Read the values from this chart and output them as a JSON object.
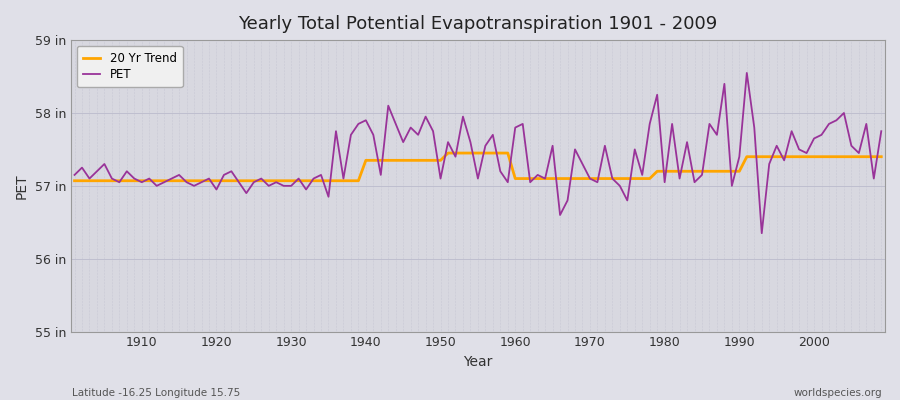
{
  "title": "Yearly Total Potential Evapotranspiration 1901 - 2009",
  "xlabel": "Year",
  "ylabel": "PET",
  "subtitle_left": "Latitude -16.25 Longitude 15.75",
  "subtitle_right": "worldspecies.org",
  "pet_color": "#993399",
  "trend_color": "#FFA500",
  "bg_color": "#E0E0E8",
  "plot_bg_color": "#D8D8E0",
  "ylim": [
    55.0,
    59.0
  ],
  "yticks": [
    55,
    56,
    57,
    58,
    59
  ],
  "ytick_labels": [
    "55 in",
    "56 in",
    "57 in",
    "58 in",
    "59 in"
  ],
  "xticks": [
    1910,
    1920,
    1930,
    1940,
    1950,
    1960,
    1970,
    1980,
    1990,
    2000
  ],
  "years": [
    1901,
    1902,
    1903,
    1904,
    1905,
    1906,
    1907,
    1908,
    1909,
    1910,
    1911,
    1912,
    1913,
    1914,
    1915,
    1916,
    1917,
    1918,
    1919,
    1920,
    1921,
    1922,
    1923,
    1924,
    1925,
    1926,
    1927,
    1928,
    1929,
    1930,
    1931,
    1932,
    1933,
    1934,
    1935,
    1936,
    1937,
    1938,
    1939,
    1940,
    1941,
    1942,
    1943,
    1944,
    1945,
    1946,
    1947,
    1948,
    1949,
    1950,
    1951,
    1952,
    1953,
    1954,
    1955,
    1956,
    1957,
    1958,
    1959,
    1960,
    1961,
    1962,
    1963,
    1964,
    1965,
    1966,
    1967,
    1968,
    1969,
    1970,
    1971,
    1972,
    1973,
    1974,
    1975,
    1976,
    1977,
    1978,
    1979,
    1980,
    1981,
    1982,
    1983,
    1984,
    1985,
    1986,
    1987,
    1988,
    1989,
    1990,
    1991,
    1992,
    1993,
    1994,
    1995,
    1996,
    1997,
    1998,
    1999,
    2000,
    2001,
    2002,
    2003,
    2004,
    2005,
    2006,
    2007,
    2008,
    2009
  ],
  "pet_values": [
    57.15,
    57.25,
    57.1,
    57.2,
    57.3,
    57.1,
    57.05,
    57.2,
    57.1,
    57.05,
    57.1,
    57.0,
    57.05,
    57.1,
    57.15,
    57.05,
    57.0,
    57.05,
    57.1,
    56.95,
    57.15,
    57.2,
    57.05,
    56.9,
    57.05,
    57.1,
    57.0,
    57.05,
    57.0,
    57.0,
    57.1,
    56.95,
    57.1,
    57.15,
    56.85,
    57.75,
    57.1,
    57.7,
    57.85,
    57.9,
    57.7,
    57.15,
    58.1,
    57.85,
    57.6,
    57.8,
    57.7,
    57.95,
    57.75,
    57.1,
    57.6,
    57.4,
    57.95,
    57.6,
    57.1,
    57.55,
    57.7,
    57.2,
    57.05,
    57.8,
    57.85,
    57.05,
    57.15,
    57.1,
    57.55,
    56.6,
    56.8,
    57.5,
    57.3,
    57.1,
    57.05,
    57.55,
    57.1,
    57.0,
    56.8,
    57.5,
    57.15,
    57.85,
    58.25,
    57.05,
    57.85,
    57.1,
    57.6,
    57.05,
    57.15,
    57.85,
    57.7,
    58.4,
    57.0,
    57.4,
    58.55,
    57.8,
    56.35,
    57.3,
    57.55,
    57.35,
    57.75,
    57.5,
    57.45,
    57.65,
    57.7,
    57.85,
    57.9,
    58.0,
    57.55,
    57.45,
    57.85,
    57.1,
    57.75
  ],
  "trend_values": [
    57.07,
    57.07,
    57.07,
    57.07,
    57.07,
    57.07,
    57.07,
    57.07,
    57.07,
    57.07,
    57.07,
    57.07,
    57.07,
    57.07,
    57.07,
    57.07,
    57.07,
    57.07,
    57.07,
    57.07,
    57.07,
    57.07,
    57.07,
    57.07,
    57.07,
    57.07,
    57.07,
    57.07,
    57.07,
    57.07,
    57.07,
    57.07,
    57.07,
    57.07,
    57.07,
    57.07,
    57.07,
    57.07,
    57.07,
    57.35,
    57.35,
    57.35,
    57.35,
    57.35,
    57.35,
    57.35,
    57.35,
    57.35,
    57.35,
    57.35,
    57.45,
    57.45,
    57.45,
    57.45,
    57.45,
    57.45,
    57.45,
    57.45,
    57.45,
    57.1,
    57.1,
    57.1,
    57.1,
    57.1,
    57.1,
    57.1,
    57.1,
    57.1,
    57.1,
    57.1,
    57.1,
    57.1,
    57.1,
    57.1,
    57.1,
    57.1,
    57.1,
    57.1,
    57.2,
    57.2,
    57.2,
    57.2,
    57.2,
    57.2,
    57.2,
    57.2,
    57.2,
    57.2,
    57.2,
    57.2,
    57.4,
    57.4,
    57.4,
    57.4,
    57.4,
    57.4,
    57.4,
    57.4,
    57.4,
    57.4,
    57.4,
    57.4,
    57.4,
    57.4,
    57.4,
    57.4,
    57.4,
    57.4,
    57.4
  ]
}
